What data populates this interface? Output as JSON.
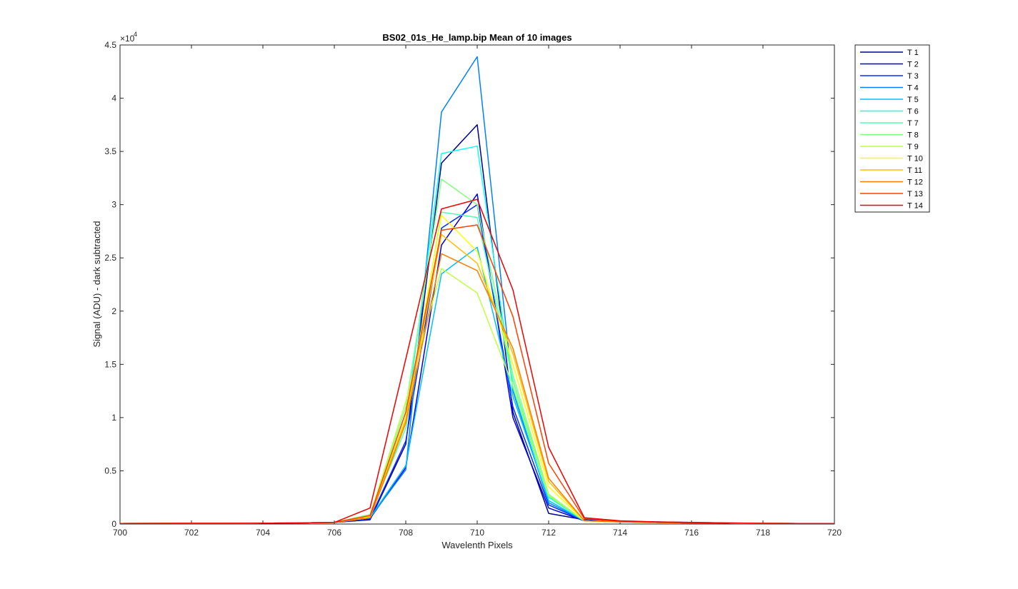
{
  "chart_data": {
    "type": "line",
    "title": "BS02_01s_He_lamp.bip  Mean of 10 images",
    "xlabel": "Wavelenth Pixels",
    "ylabel": "Signal (ADU) - dark subtracted",
    "y_exponent_label": "×10",
    "y_exponent_power": "4",
    "xlim": [
      700,
      720
    ],
    "ylim": [
      0,
      45000
    ],
    "x_ticks": [
      700,
      702,
      704,
      706,
      708,
      710,
      712,
      714,
      716,
      718,
      720
    ],
    "x_tick_labels": [
      "700",
      "702",
      "704",
      "706",
      "708",
      "710",
      "712",
      "714",
      "716",
      "718",
      "720"
    ],
    "y_ticks": [
      0,
      5000,
      10000,
      15000,
      20000,
      25000,
      30000,
      35000,
      40000,
      45000
    ],
    "y_tick_labels": [
      "0",
      "0.5",
      "1",
      "1.5",
      "2",
      "2.5",
      "3",
      "3.5",
      "4",
      "4.5"
    ],
    "grid": false,
    "legend_position": "outside-top-right",
    "x": [
      700,
      701,
      702,
      703,
      704,
      705,
      706,
      707,
      708,
      709,
      710,
      711,
      712,
      713,
      714,
      715,
      716,
      717,
      718,
      719,
      720
    ],
    "series": [
      {
        "name": "T 1",
        "color": "#00008F",
        "values": [
          50,
          60,
          70,
          70,
          80,
          100,
          150,
          400,
          7500,
          33900,
          37500,
          10500,
          1000,
          400,
          200,
          150,
          100,
          80,
          60,
          50,
          50
        ]
      },
      {
        "name": "T 2",
        "color": "#0000DF",
        "values": [
          50,
          60,
          70,
          70,
          80,
          100,
          150,
          500,
          5300,
          26200,
          31000,
          10000,
          1500,
          300,
          200,
          150,
          100,
          80,
          60,
          50,
          50
        ]
      },
      {
        "name": "T 3",
        "color": "#0030FF",
        "values": [
          50,
          60,
          70,
          70,
          80,
          100,
          150,
          500,
          7800,
          27800,
          30000,
          11000,
          1800,
          300,
          250,
          200,
          150,
          100,
          70,
          50,
          50
        ]
      },
      {
        "name": "T 4",
        "color": "#0080FF",
        "values": [
          50,
          60,
          70,
          70,
          80,
          100,
          150,
          600,
          5100,
          38700,
          43900,
          12500,
          2000,
          300,
          200,
          150,
          100,
          80,
          60,
          50,
          50
        ]
      },
      {
        "name": "T 5",
        "color": "#00C0FF",
        "values": [
          50,
          60,
          70,
          70,
          80,
          100,
          150,
          600,
          5500,
          23500,
          26000,
          12000,
          2200,
          300,
          200,
          150,
          100,
          80,
          60,
          50,
          50
        ]
      },
      {
        "name": "T 6",
        "color": "#10FFEF",
        "values": [
          50,
          60,
          70,
          70,
          80,
          100,
          150,
          700,
          9500,
          34800,
          35500,
          12800,
          2500,
          300,
          200,
          150,
          100,
          80,
          60,
          50,
          50
        ]
      },
      {
        "name": "T 7",
        "color": "#50FFAF",
        "values": [
          50,
          60,
          70,
          70,
          80,
          100,
          150,
          800,
          9000,
          29300,
          28800,
          13500,
          2600,
          300,
          200,
          150,
          100,
          80,
          60,
          50,
          50
        ]
      },
      {
        "name": "T 8",
        "color": "#80FF80",
        "values": [
          50,
          60,
          70,
          70,
          80,
          100,
          150,
          900,
          11000,
          32400,
          30000,
          14000,
          2800,
          300,
          200,
          150,
          100,
          80,
          60,
          50,
          50
        ]
      },
      {
        "name": "T 9",
        "color": "#BFFF40",
        "values": [
          50,
          60,
          70,
          70,
          80,
          100,
          150,
          800,
          11500,
          24000,
          21700,
          13000,
          2700,
          300,
          200,
          150,
          100,
          80,
          60,
          50,
          50
        ]
      },
      {
        "name": "T 10",
        "color": "#FFFF00",
        "values": [
          50,
          60,
          70,
          70,
          80,
          100,
          150,
          700,
          10000,
          29000,
          25600,
          15000,
          3500,
          300,
          200,
          150,
          100,
          80,
          60,
          50,
          50
        ]
      },
      {
        "name": "T 11",
        "color": "#FFBF00",
        "values": [
          50,
          60,
          70,
          70,
          80,
          100,
          150,
          600,
          9800,
          27200,
          24500,
          16000,
          4000,
          300,
          200,
          150,
          100,
          80,
          60,
          50,
          50
        ]
      },
      {
        "name": "T 12",
        "color": "#FF8000",
        "values": [
          50,
          60,
          70,
          70,
          80,
          100,
          150,
          600,
          9500,
          25400,
          23800,
          16500,
          4300,
          300,
          200,
          150,
          100,
          80,
          60,
          50,
          50
        ]
      },
      {
        "name": "T 13",
        "color": "#FF4000",
        "values": [
          50,
          60,
          70,
          70,
          80,
          100,
          150,
          800,
          10500,
          27600,
          28100,
          19500,
          5700,
          500,
          250,
          150,
          100,
          80,
          60,
          50,
          50
        ]
      },
      {
        "name": "T 14",
        "color": "#EF0000",
        "values": [
          50,
          60,
          70,
          70,
          80,
          100,
          150,
          1500,
          15500,
          29600,
          30500,
          22000,
          7200,
          600,
          300,
          200,
          150,
          100,
          70,
          50,
          50
        ]
      }
    ]
  }
}
